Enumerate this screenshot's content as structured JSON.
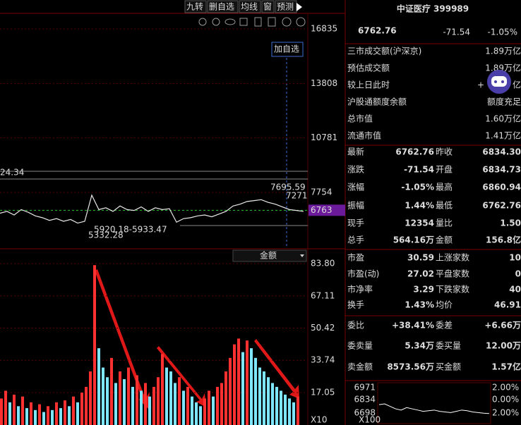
{
  "toolbar": [
    "九转",
    "删自选",
    "均线",
    "窗",
    "预测"
  ],
  "price_chart": {
    "yticks": [
      16835,
      13808,
      10781,
      7754
    ],
    "current": 6763,
    "add_button": "加自选",
    "annotations": [
      "24.34",
      "7695.59",
      "7271",
      "5920.18-5933.47",
      "5332.28"
    ],
    "values": [
      6600,
      6700,
      6500,
      6800,
      6650,
      6450,
      6350,
      6200,
      6300,
      6150,
      6250,
      6050,
      6150,
      7600,
      6800,
      6900,
      6700,
      7000,
      6800,
      6750,
      6950,
      6700,
      6900,
      6800,
      6850,
      6100,
      6300,
      6350,
      6450,
      6500,
      6400,
      6550,
      6700,
      7000,
      7100,
      7250,
      7300,
      7350,
      7200,
      7100,
      6950,
      6800,
      6750,
      6700
    ]
  },
  "volume_chart": {
    "selector": "金额",
    "multiplier": "X10",
    "yticks": [
      {
        "value": 83.8,
        "label": "83.80"
      },
      {
        "value": 67.11,
        "label": "67.11"
      },
      {
        "value": 50.42,
        "label": "50.42"
      },
      {
        "value": 33.74,
        "label": "33.74"
      },
      {
        "value": 17.05,
        "label": "17.05"
      }
    ],
    "values": [
      14,
      18,
      12,
      16,
      10,
      15,
      9,
      12,
      8,
      11,
      7,
      10,
      8,
      12,
      9,
      13,
      10,
      15,
      12,
      17,
      20,
      28,
      83,
      40,
      30,
      25,
      35,
      22,
      28,
      24,
      30,
      20,
      26,
      18,
      22,
      15,
      20,
      25,
      37,
      30,
      28,
      22,
      25,
      18,
      20,
      15,
      12,
      10,
      14,
      18,
      15,
      20,
      22,
      28,
      35,
      42,
      45,
      38,
      44,
      40,
      35,
      30,
      28,
      25,
      22,
      20,
      18,
      16,
      14,
      12,
      15
    ]
  },
  "quote": {
    "name": "中证医疗 399989",
    "price": "6762.76",
    "change": "-71.54",
    "pct": "-1.05%"
  },
  "summary": [
    {
      "label": "三市成交额(沪深京)",
      "value": "1.89万亿",
      "color": "#20c8ff"
    },
    {
      "label": "预估成交额",
      "value": "1.89万亿",
      "color": "#20c8ff"
    },
    {
      "label": "较上日此时",
      "value": "+",
      "unit": "亿",
      "color": "#ff4040"
    },
    {
      "label": "沪股通额度余额",
      "value": "额度充足",
      "color": "#20c8ff"
    },
    {
      "label": "总市值",
      "value": "1.60万亿",
      "color": "#20c8ff"
    },
    {
      "label": "流通市值",
      "value": "1.41万亿",
      "color": "#20c8ff"
    }
  ],
  "grid": [
    [
      {
        "label": "最新",
        "value": "6762.76",
        "color": "#00e600"
      },
      {
        "label": "昨收",
        "value": "6834.30",
        "color": "#ffffff"
      }
    ],
    [
      {
        "label": "涨跌",
        "value": "-71.54",
        "color": "#00e600"
      },
      {
        "label": "开盘",
        "value": "6834.73",
        "color": "#ff4040"
      }
    ],
    [
      {
        "label": "涨幅",
        "value": "-1.05%",
        "color": "#00e600"
      },
      {
        "label": "最高",
        "value": "6860.94",
        "color": "#ff4040"
      }
    ],
    [
      {
        "label": "振幅",
        "value": "1.44%",
        "color": "#20c8ff"
      },
      {
        "label": "最低",
        "value": "6762.76",
        "color": "#00e600"
      }
    ],
    [
      {
        "label": "现手",
        "value": "12354",
        "color": "#20c8ff"
      },
      {
        "label": "量比",
        "value": "1.50",
        "color": "#ff4040"
      }
    ],
    [
      {
        "label": "总手",
        "value": "564.16万",
        "color": "#20c8ff"
      },
      {
        "label": "金额",
        "value": "156.8亿",
        "color": "#20c8ff"
      }
    ],
    [
      {
        "label": "市盈",
        "value": "30.59",
        "color": "#ffffff"
      },
      {
        "label": "上涨家数",
        "value": "10",
        "color": "#ff4040"
      }
    ],
    [
      {
        "label": "市盈(动)",
        "value": "27.02",
        "color": "#ffffff"
      },
      {
        "label": "平盘家数",
        "value": "0",
        "color": "#ffffff"
      }
    ],
    [
      {
        "label": "市净率",
        "value": "3.29",
        "color": "#ffffff"
      },
      {
        "label": "下跌家数",
        "value": "40",
        "color": "#00e600"
      }
    ],
    [
      {
        "label": "换手",
        "value": "1.43%",
        "color": "#20c8ff"
      },
      {
        "label": "均价",
        "value": "46.91",
        "color": "#ffffff"
      }
    ],
    [
      {
        "label": "委比",
        "value": "+38.41%",
        "color": "#ff4040"
      },
      {
        "label": "委差",
        "value": "+6.66万",
        "color": "#ff4040"
      }
    ],
    [
      {
        "label": "委卖量",
        "value": "5.34万",
        "color": "#20c8ff"
      },
      {
        "label": "委买量",
        "value": "12.00万",
        "color": "#ff4040"
      }
    ],
    [
      {
        "label": "卖金额",
        "value": "8573.56万",
        "color": "#20c8ff"
      },
      {
        "label": "买金额",
        "value": "1.57亿",
        "color": "#20c8ff"
      }
    ]
  ],
  "mini_chart": {
    "left_labels": [
      "6971",
      "6834",
      "6698"
    ],
    "right_labels": [
      "2.00%",
      "0.00%",
      "2.00%"
    ],
    "multiplier": "X100",
    "ylim": [
      6698,
      6971
    ],
    "values": [
      6834,
      6840,
      6820,
      6800,
      6790,
      6810,
      6800,
      6790,
      6780,
      6785,
      6790,
      6780,
      6775,
      6770,
      6780,
      6790,
      6785,
      6775,
      6770,
      6765,
      6762
    ]
  }
}
